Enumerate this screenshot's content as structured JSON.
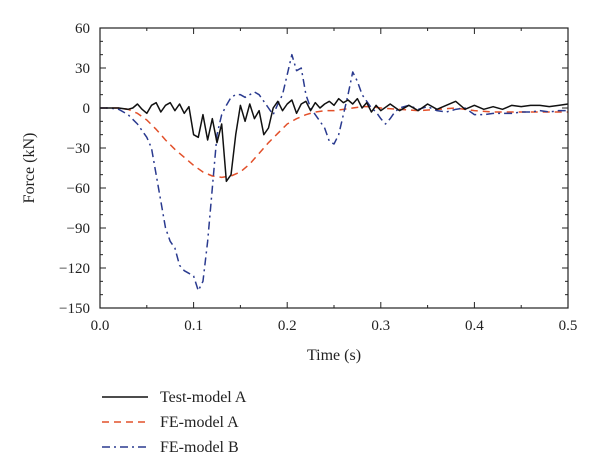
{
  "chart_data": {
    "type": "line",
    "title": "",
    "xlabel": "Time (s)",
    "ylabel": "Force (kN)",
    "xlim": [
      0,
      0.5
    ],
    "ylim": [
      -150,
      60
    ],
    "x_ticks": [
      0.0,
      0.1,
      0.2,
      0.3,
      0.4,
      0.5
    ],
    "x_tick_labels": [
      "0.0",
      "0.1",
      "0.2",
      "0.3",
      "0.4",
      "0.5"
    ],
    "y_ticks": [
      60,
      30,
      0,
      -30,
      -60,
      -90,
      -120,
      -150
    ],
    "y_tick_labels": [
      "60",
      "30",
      "0",
      "−30",
      "−60",
      "−90",
      "−120",
      "−150"
    ],
    "grid": false,
    "legend_position": "bottom-left, below plot",
    "series": [
      {
        "name": "Test-model A",
        "color": "#111111",
        "style": "solid",
        "points": [
          [
            0,
            0
          ],
          [
            0.01,
            0
          ],
          [
            0.02,
            0
          ],
          [
            0.03,
            -1
          ],
          [
            0.035,
            0
          ],
          [
            0.04,
            3
          ],
          [
            0.045,
            -1
          ],
          [
            0.05,
            -4
          ],
          [
            0.055,
            2
          ],
          [
            0.06,
            4
          ],
          [
            0.065,
            -3
          ],
          [
            0.07,
            2
          ],
          [
            0.075,
            4
          ],
          [
            0.08,
            -2
          ],
          [
            0.085,
            3
          ],
          [
            0.09,
            -4
          ],
          [
            0.095,
            1
          ],
          [
            0.1,
            -20
          ],
          [
            0.105,
            -22
          ],
          [
            0.11,
            -5
          ],
          [
            0.115,
            -24
          ],
          [
            0.12,
            -8
          ],
          [
            0.125,
            -26
          ],
          [
            0.13,
            -12
          ],
          [
            0.135,
            -55
          ],
          [
            0.14,
            -50
          ],
          [
            0.145,
            -20
          ],
          [
            0.15,
            2
          ],
          [
            0.155,
            -10
          ],
          [
            0.16,
            3
          ],
          [
            0.165,
            -8
          ],
          [
            0.17,
            -2
          ],
          [
            0.175,
            -20
          ],
          [
            0.18,
            -15
          ],
          [
            0.185,
            0
          ],
          [
            0.19,
            5
          ],
          [
            0.195,
            -2
          ],
          [
            0.2,
            3
          ],
          [
            0.205,
            6
          ],
          [
            0.21,
            -4
          ],
          [
            0.215,
            3
          ],
          [
            0.22,
            5
          ],
          [
            0.225,
            -2
          ],
          [
            0.23,
            4
          ],
          [
            0.235,
            0
          ],
          [
            0.24,
            3
          ],
          [
            0.245,
            5
          ],
          [
            0.25,
            2
          ],
          [
            0.255,
            7
          ],
          [
            0.26,
            4
          ],
          [
            0.265,
            6
          ],
          [
            0.27,
            3
          ],
          [
            0.275,
            7
          ],
          [
            0.28,
            0
          ],
          [
            0.285,
            4
          ],
          [
            0.29,
            -3
          ],
          [
            0.295,
            2
          ],
          [
            0.3,
            -2
          ],
          [
            0.31,
            3
          ],
          [
            0.32,
            -2
          ],
          [
            0.33,
            2
          ],
          [
            0.34,
            -2
          ],
          [
            0.35,
            3
          ],
          [
            0.36,
            -1
          ],
          [
            0.37,
            2
          ],
          [
            0.38,
            5
          ],
          [
            0.39,
            -1
          ],
          [
            0.4,
            2
          ],
          [
            0.41,
            -1
          ],
          [
            0.42,
            1
          ],
          [
            0.43,
            -1
          ],
          [
            0.44,
            2
          ],
          [
            0.45,
            1
          ],
          [
            0.46,
            2
          ],
          [
            0.47,
            2
          ],
          [
            0.48,
            1
          ],
          [
            0.49,
            2
          ],
          [
            0.5,
            3
          ]
        ]
      },
      {
        "name": "FE-model A",
        "color": "#E2502A",
        "style": "dashed",
        "points": [
          [
            0,
            0
          ],
          [
            0.02,
            0
          ],
          [
            0.03,
            -1
          ],
          [
            0.04,
            -4
          ],
          [
            0.05,
            -9
          ],
          [
            0.06,
            -16
          ],
          [
            0.07,
            -24
          ],
          [
            0.08,
            -31
          ],
          [
            0.09,
            -37
          ],
          [
            0.1,
            -43
          ],
          [
            0.11,
            -48
          ],
          [
            0.12,
            -51
          ],
          [
            0.13,
            -52
          ],
          [
            0.14,
            -51
          ],
          [
            0.15,
            -48
          ],
          [
            0.16,
            -42
          ],
          [
            0.17,
            -34
          ],
          [
            0.18,
            -26
          ],
          [
            0.19,
            -19
          ],
          [
            0.2,
            -12
          ],
          [
            0.21,
            -8
          ],
          [
            0.22,
            -5
          ],
          [
            0.23,
            -3
          ],
          [
            0.24,
            -2
          ],
          [
            0.25,
            -2
          ],
          [
            0.26,
            -1
          ],
          [
            0.27,
            0
          ],
          [
            0.28,
            1
          ],
          [
            0.29,
            1
          ],
          [
            0.3,
            0
          ],
          [
            0.32,
            -1
          ],
          [
            0.34,
            -2
          ],
          [
            0.36,
            -1
          ],
          [
            0.38,
            0
          ],
          [
            0.4,
            -2
          ],
          [
            0.42,
            -3
          ],
          [
            0.44,
            -3
          ],
          [
            0.46,
            -3
          ],
          [
            0.48,
            -3
          ],
          [
            0.5,
            -3
          ]
        ]
      },
      {
        "name": "FE-model B",
        "color": "#2A3A8F",
        "style": "dashdot",
        "points": [
          [
            0,
            0
          ],
          [
            0.01,
            0
          ],
          [
            0.02,
            -1
          ],
          [
            0.03,
            -5
          ],
          [
            0.04,
            -12
          ],
          [
            0.05,
            -22
          ],
          [
            0.055,
            -30
          ],
          [
            0.06,
            -50
          ],
          [
            0.065,
            -70
          ],
          [
            0.07,
            -90
          ],
          [
            0.075,
            -100
          ],
          [
            0.08,
            -105
          ],
          [
            0.085,
            -118
          ],
          [
            0.09,
            -122
          ],
          [
            0.095,
            -124
          ],
          [
            0.1,
            -126
          ],
          [
            0.105,
            -137
          ],
          [
            0.11,
            -130
          ],
          [
            0.115,
            -100
          ],
          [
            0.12,
            -60
          ],
          [
            0.125,
            -20
          ],
          [
            0.13,
            -5
          ],
          [
            0.135,
            2
          ],
          [
            0.14,
            8
          ],
          [
            0.145,
            10
          ],
          [
            0.15,
            10
          ],
          [
            0.155,
            8
          ],
          [
            0.16,
            10
          ],
          [
            0.165,
            12
          ],
          [
            0.17,
            10
          ],
          [
            0.175,
            5
          ],
          [
            0.18,
            0
          ],
          [
            0.185,
            -5
          ],
          [
            0.19,
            3
          ],
          [
            0.195,
            10
          ],
          [
            0.2,
            25
          ],
          [
            0.205,
            40
          ],
          [
            0.21,
            28
          ],
          [
            0.215,
            30
          ],
          [
            0.22,
            10
          ],
          [
            0.225,
            0
          ],
          [
            0.23,
            -5
          ],
          [
            0.235,
            -10
          ],
          [
            0.24,
            -15
          ],
          [
            0.245,
            -25
          ],
          [
            0.25,
            -27
          ],
          [
            0.255,
            -20
          ],
          [
            0.26,
            -5
          ],
          [
            0.265,
            10
          ],
          [
            0.27,
            27
          ],
          [
            0.275,
            20
          ],
          [
            0.28,
            10
          ],
          [
            0.285,
            5
          ],
          [
            0.29,
            0
          ],
          [
            0.295,
            -3
          ],
          [
            0.3,
            -8
          ],
          [
            0.305,
            -12
          ],
          [
            0.31,
            -8
          ],
          [
            0.315,
            -3
          ],
          [
            0.32,
            0
          ],
          [
            0.33,
            2
          ],
          [
            0.34,
            -1
          ],
          [
            0.35,
            1
          ],
          [
            0.36,
            -2
          ],
          [
            0.37,
            -3
          ],
          [
            0.38,
            -1
          ],
          [
            0.39,
            0
          ],
          [
            0.4,
            -5
          ],
          [
            0.41,
            -5
          ],
          [
            0.42,
            -4
          ],
          [
            0.43,
            -4
          ],
          [
            0.44,
            -4
          ],
          [
            0.45,
            -3
          ],
          [
            0.46,
            -3
          ],
          [
            0.47,
            -2
          ],
          [
            0.48,
            -3
          ],
          [
            0.49,
            -2
          ],
          [
            0.5,
            -2
          ]
        ]
      }
    ]
  }
}
